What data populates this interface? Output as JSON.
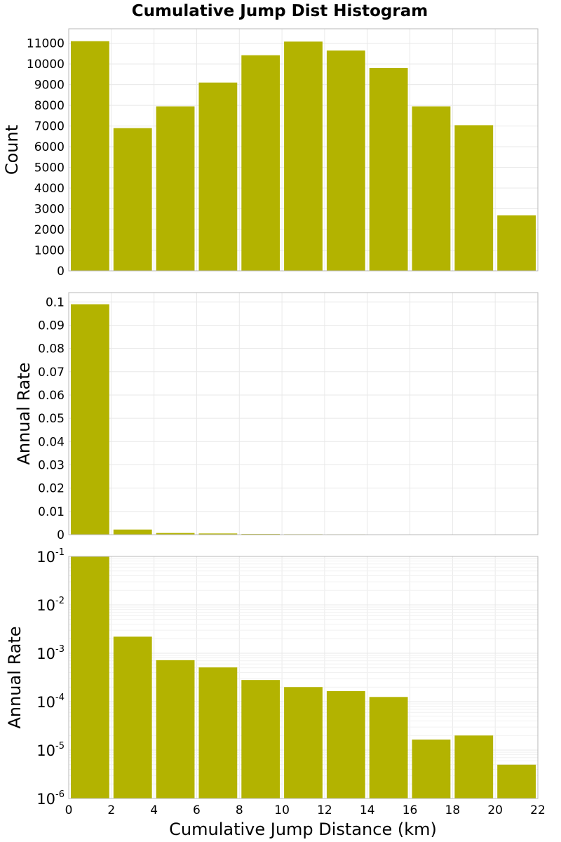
{
  "chart_data": {
    "title": "Cumulative Jump Dist Histogram",
    "type": "bar",
    "color": "#b3b300",
    "xlabel": "Cumulative Jump Distance (km)",
    "xlim": [
      0,
      22
    ],
    "xticks": [
      0,
      2,
      4,
      6,
      8,
      10,
      12,
      14,
      16,
      18,
      20,
      22
    ],
    "bins": [
      [
        0,
        2
      ],
      [
        2,
        4
      ],
      [
        4,
        6
      ],
      [
        6,
        8
      ],
      [
        8,
        10
      ],
      [
        10,
        12
      ],
      [
        12,
        14
      ],
      [
        14,
        16
      ],
      [
        16,
        18
      ],
      [
        18,
        20
      ],
      [
        20,
        22
      ]
    ],
    "panels": [
      {
        "id": "count",
        "ylabel": "Count",
        "scale": "linear",
        "ylim": [
          0,
          11700
        ],
        "yticks": [
          0,
          1000,
          2000,
          3000,
          4000,
          5000,
          6000,
          7000,
          8000,
          9000,
          10000,
          11000
        ],
        "ytick_labels": [
          "0",
          "1000",
          "2000",
          "3000",
          "4000",
          "5000",
          "6000",
          "7000",
          "8000",
          "9000",
          "10000",
          "11000"
        ],
        "values": [
          11100,
          6900,
          7950,
          9100,
          10420,
          11080,
          10650,
          9800,
          7950,
          7040,
          2680
        ]
      },
      {
        "id": "rate-linear",
        "ylabel": "Annual Rate",
        "scale": "linear",
        "ylim": [
          0,
          0.104
        ],
        "yticks": [
          0,
          0.01,
          0.02,
          0.03,
          0.04,
          0.05,
          0.06,
          0.07,
          0.08,
          0.09,
          0.1
        ],
        "ytick_labels": [
          "0",
          "0.01",
          "0.02",
          "0.03",
          "0.04",
          "0.05",
          "0.06",
          "0.07",
          "0.08",
          "0.09",
          "0.1"
        ],
        "values": [
          0.099,
          0.0022,
          0.00072,
          0.00051,
          0.00028,
          0.0002,
          0.000165,
          0.000125,
          1.65e-05,
          2e-05,
          5e-06
        ]
      },
      {
        "id": "rate-log",
        "ylabel": "Annual Rate",
        "scale": "log",
        "ylim": [
          1e-06,
          0.1
        ],
        "yticks": [
          1e-06,
          1e-05,
          0.0001,
          0.001,
          0.01,
          0.1
        ],
        "ytick_base": "10",
        "ytick_exponents": [
          "-6",
          "-5",
          "-4",
          "-3",
          "-2",
          "-1"
        ],
        "values": [
          0.099,
          0.0022,
          0.00072,
          0.00051,
          0.00028,
          0.0002,
          0.000165,
          0.000125,
          1.65e-05,
          2e-05,
          5e-06
        ]
      }
    ]
  }
}
